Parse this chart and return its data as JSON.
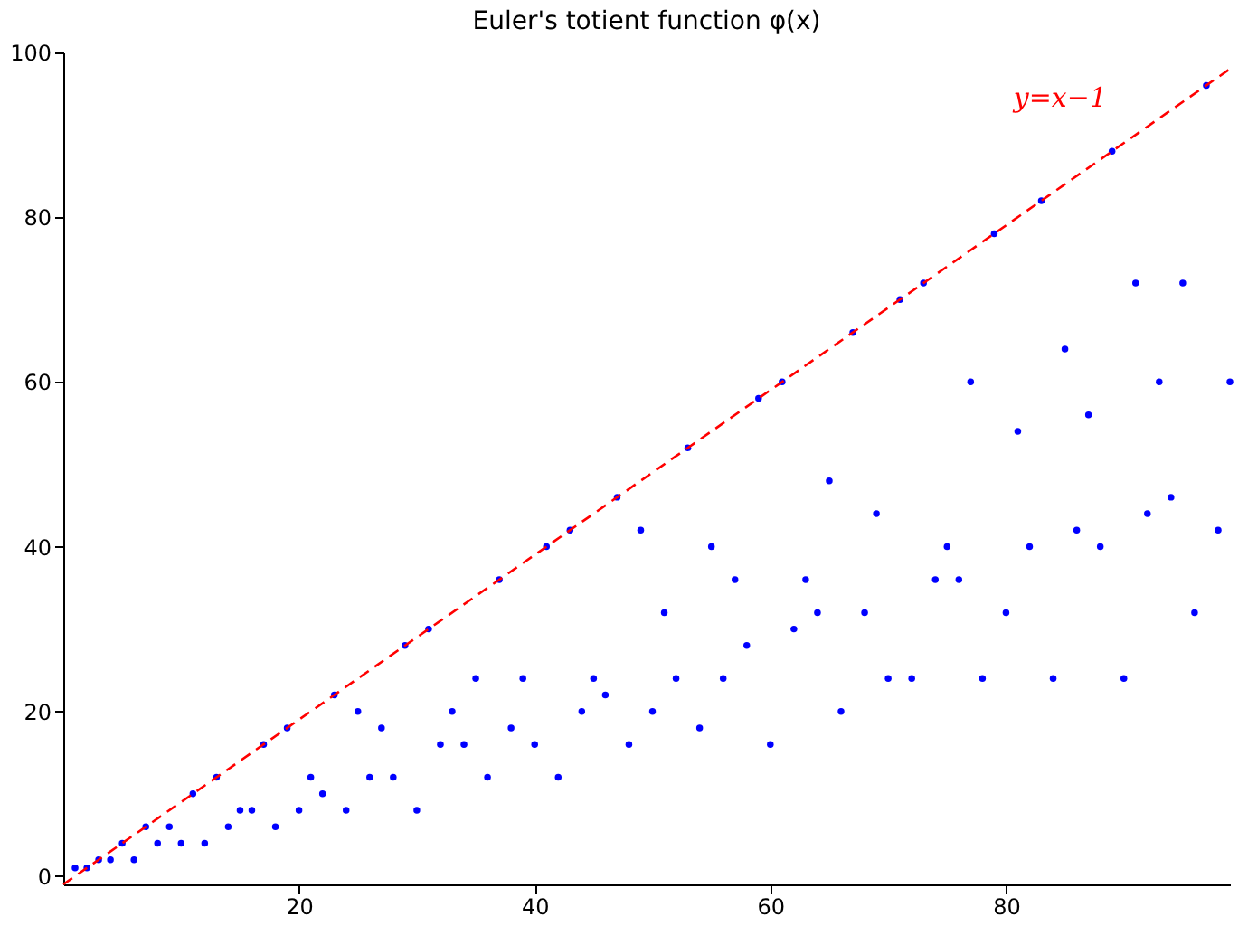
{
  "chart_data": {
    "type": "scatter",
    "title": "Euler's totient function φ(x)",
    "xlim": [
      0,
      99
    ],
    "ylim": [
      -1,
      100
    ],
    "xticks": [
      20,
      40,
      60,
      80
    ],
    "yticks": [
      0,
      20,
      40,
      60,
      80,
      100
    ],
    "grid": false,
    "series": [
      {
        "color": "#0000ff",
        "marker": "circle",
        "x": [
          1,
          2,
          3,
          4,
          5,
          6,
          7,
          8,
          9,
          10,
          11,
          12,
          13,
          14,
          15,
          16,
          17,
          18,
          19,
          20,
          21,
          22,
          23,
          24,
          25,
          26,
          27,
          28,
          29,
          30,
          31,
          32,
          33,
          34,
          35,
          36,
          37,
          38,
          39,
          40,
          41,
          42,
          43,
          44,
          45,
          46,
          47,
          48,
          49,
          50,
          51,
          52,
          53,
          54,
          55,
          56,
          57,
          58,
          59,
          60,
          61,
          62,
          63,
          64,
          65,
          66,
          67,
          68,
          69,
          70,
          71,
          72,
          73,
          74,
          75,
          76,
          77,
          78,
          79,
          80,
          81,
          82,
          83,
          84,
          85,
          86,
          87,
          88,
          89,
          90,
          91,
          92,
          93,
          94,
          95,
          96,
          97,
          98,
          99
        ],
        "values": [
          1,
          1,
          2,
          2,
          4,
          2,
          6,
          4,
          6,
          4,
          10,
          4,
          12,
          6,
          8,
          8,
          16,
          6,
          18,
          8,
          12,
          10,
          22,
          8,
          20,
          12,
          18,
          12,
          28,
          8,
          30,
          16,
          20,
          16,
          24,
          12,
          36,
          18,
          24,
          16,
          40,
          12,
          42,
          20,
          24,
          22,
          46,
          16,
          42,
          20,
          32,
          24,
          52,
          18,
          40,
          24,
          36,
          28,
          58,
          16,
          60,
          30,
          36,
          32,
          48,
          20,
          66,
          32,
          44,
          24,
          70,
          24,
          72,
          36,
          40,
          36,
          60,
          24,
          78,
          32,
          54,
          40,
          82,
          24,
          64,
          42,
          56,
          40,
          88,
          24,
          72,
          44,
          60,
          46,
          72,
          32,
          96,
          42,
          60
        ]
      },
      {
        "type": "line",
        "name": "y=x−1",
        "color": "#ff0000",
        "line_style": "dashed",
        "x": [
          0,
          99
        ],
        "values": [
          -1,
          98
        ]
      }
    ]
  }
}
